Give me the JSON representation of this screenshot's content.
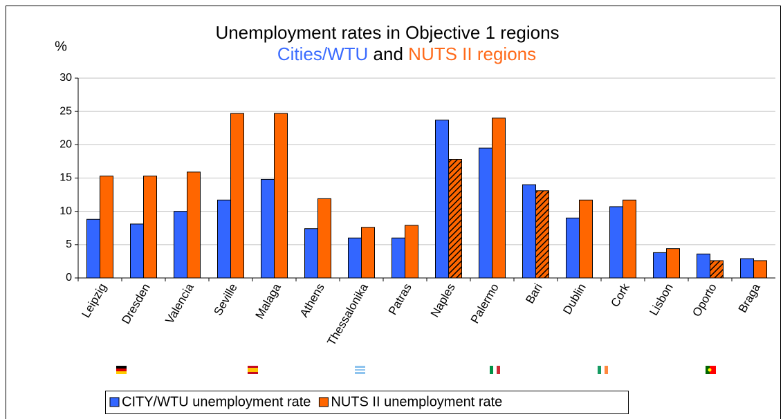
{
  "chart_data": {
    "type": "bar",
    "title": "Unemployment rates in Objective 1 regions",
    "subtitle_parts": [
      {
        "text": "Cities/WTU",
        "color": "#3a6bff"
      },
      {
        "text": "and",
        "color": "#000000"
      },
      {
        "text": "NUTS II regions",
        "color": "#ff6a1a"
      }
    ],
    "y_label": "%",
    "categories": [
      "Leipzig",
      "Dresden",
      "Valencia",
      "Seville",
      "Malaga",
      "Athens",
      "Thessalonika",
      "Patras",
      "Naples",
      "Palermo",
      "Bari",
      "Dublin",
      "Cork",
      "Lisbon",
      "Oporto",
      "Braga"
    ],
    "series": [
      {
        "name": "CITY/WTU unemployment rate",
        "color": "#3366ff",
        "values": [
          8.8,
          8.1,
          10,
          11.7,
          14.8,
          7.4,
          6,
          6,
          23.7,
          19.5,
          14,
          9,
          10.7,
          3.8,
          3.6,
          2.9
        ]
      },
      {
        "name": "NUTS II unemployment rate",
        "color": "#ff6600",
        "values": [
          15.3,
          15.3,
          15.9,
          24.7,
          24.7,
          11.9,
          7.6,
          7.9,
          17.8,
          24,
          13.1,
          11.7,
          11.7,
          4.4,
          2.6,
          2.6
        ],
        "hatched": [
          false,
          false,
          false,
          false,
          false,
          false,
          false,
          false,
          true,
          false,
          true,
          false,
          false,
          false,
          true,
          false
        ]
      }
    ],
    "ylim": [
      0,
      30
    ],
    "yticks": [
      0,
      5,
      10,
      15,
      20,
      25,
      30
    ],
    "grid": true,
    "legend": "bottom"
  }
}
